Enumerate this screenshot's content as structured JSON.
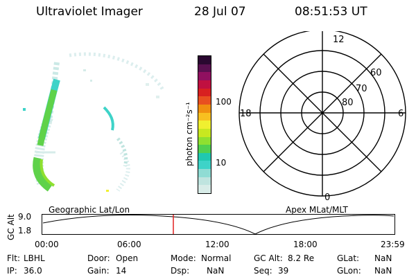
{
  "header": {
    "title": "Ultraviolet Imager",
    "date": "28 Jul 07",
    "time": "08:51:53 UT"
  },
  "colorbar": {
    "label": "photon cm⁻²s⁻¹",
    "ticks": [
      "100",
      "10"
    ],
    "colors": [
      "#d8ece8",
      "#bfe4df",
      "#8fdcd4",
      "#3ed3c8",
      "#20c8b0",
      "#50d050",
      "#8fe030",
      "#c8e820",
      "#f0f030",
      "#f8c020",
      "#f09010",
      "#e85020",
      "#d82020",
      "#c01040",
      "#901060",
      "#5a1050",
      "#2a0830"
    ]
  },
  "polar": {
    "rings": [
      "80",
      "70",
      "60"
    ],
    "mlt": [
      "12",
      "18",
      "6",
      "0"
    ]
  },
  "timeline": {
    "left_label": "Geographic Lat/Lon",
    "right_label": "Apex MLat/MLT",
    "axis_title": "GC Alt",
    "y_ticks": [
      "9.0",
      "1.8"
    ],
    "x_ticks": [
      "00:00",
      "06:00",
      "12:00",
      "18:00",
      "23:59"
    ],
    "marker_color": "#e02020"
  },
  "status": {
    "flt_label": "Flt:",
    "flt_value": "LBHL",
    "ip_label": "IP:",
    "ip_value": "36.0",
    "door_label": "Door:",
    "door_value": "Open",
    "gain_label": "Gain:",
    "gain_value": "14",
    "mode_label": "Mode:",
    "mode_value": "Normal",
    "dsp_label": "Dsp:",
    "dsp_value": "NaN",
    "gcalt_label": "GC Alt:",
    "gcalt_value": "8.2 Re",
    "seq_label": "Seq:",
    "seq_value": "39",
    "glat_label": "GLat:",
    "glat_value": "NaN",
    "glon_label": "GLon:",
    "glon_value": "NaN"
  }
}
